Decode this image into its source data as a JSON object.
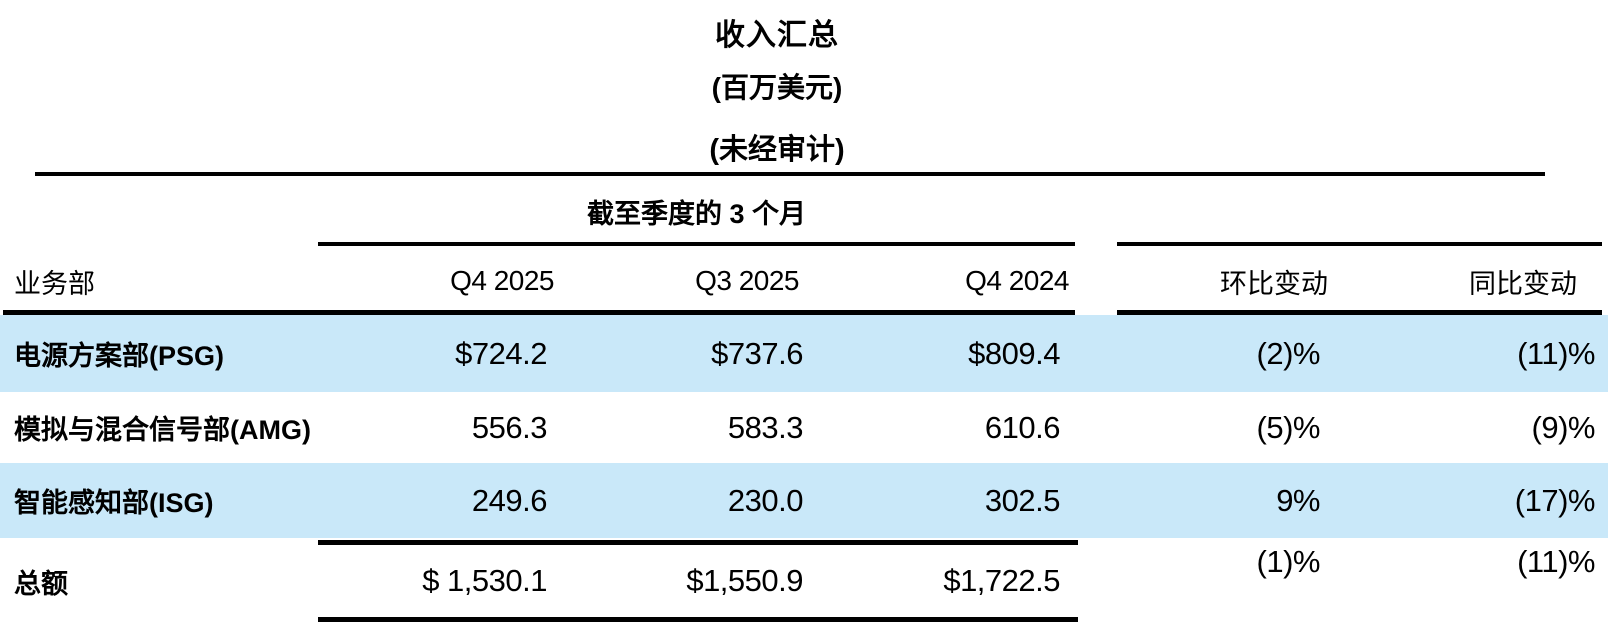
{
  "title": {
    "line1": "收入汇总",
    "line2": "(百万美元)",
    "line3": "(未经审计)"
  },
  "table": {
    "group_header": "截至季度的 3 个月",
    "columns": {
      "segment": "业务部",
      "q4_2025": "Q4 2025",
      "q3_2025": "Q3 2025",
      "q4_2024": "Q4 2024",
      "qoq": "环比变动",
      "yoy": "同比变动"
    },
    "rows": [
      {
        "segment": "电源方案部(PSG)",
        "q4_2025": "$724.2",
        "q3_2025": "$737.6",
        "q4_2024": "$809.4",
        "qoq": "(2)%",
        "yoy": "(11)%"
      },
      {
        "segment": "模拟与混合信号部(AMG)",
        "q4_2025": "556.3",
        "q3_2025": "583.3",
        "q4_2024": "610.6",
        "qoq": "(5)%",
        "yoy": "(9)%"
      },
      {
        "segment": "智能感知部(ISG)",
        "q4_2025": "249.6",
        "q3_2025": "230.0",
        "q4_2024": "302.5",
        "qoq": "9%",
        "yoy": "(17)%"
      }
    ],
    "total": {
      "segment": "总额",
      "q4_2025": "$ 1,530.1",
      "q3_2025": "$1,550.9",
      "q4_2024": "$1,722.5",
      "qoq": "(1)%",
      "yoy": "(11)%"
    }
  },
  "colors": {
    "row_highlight": "#c9e8f9",
    "rule": "#000000",
    "text": "#000000"
  }
}
